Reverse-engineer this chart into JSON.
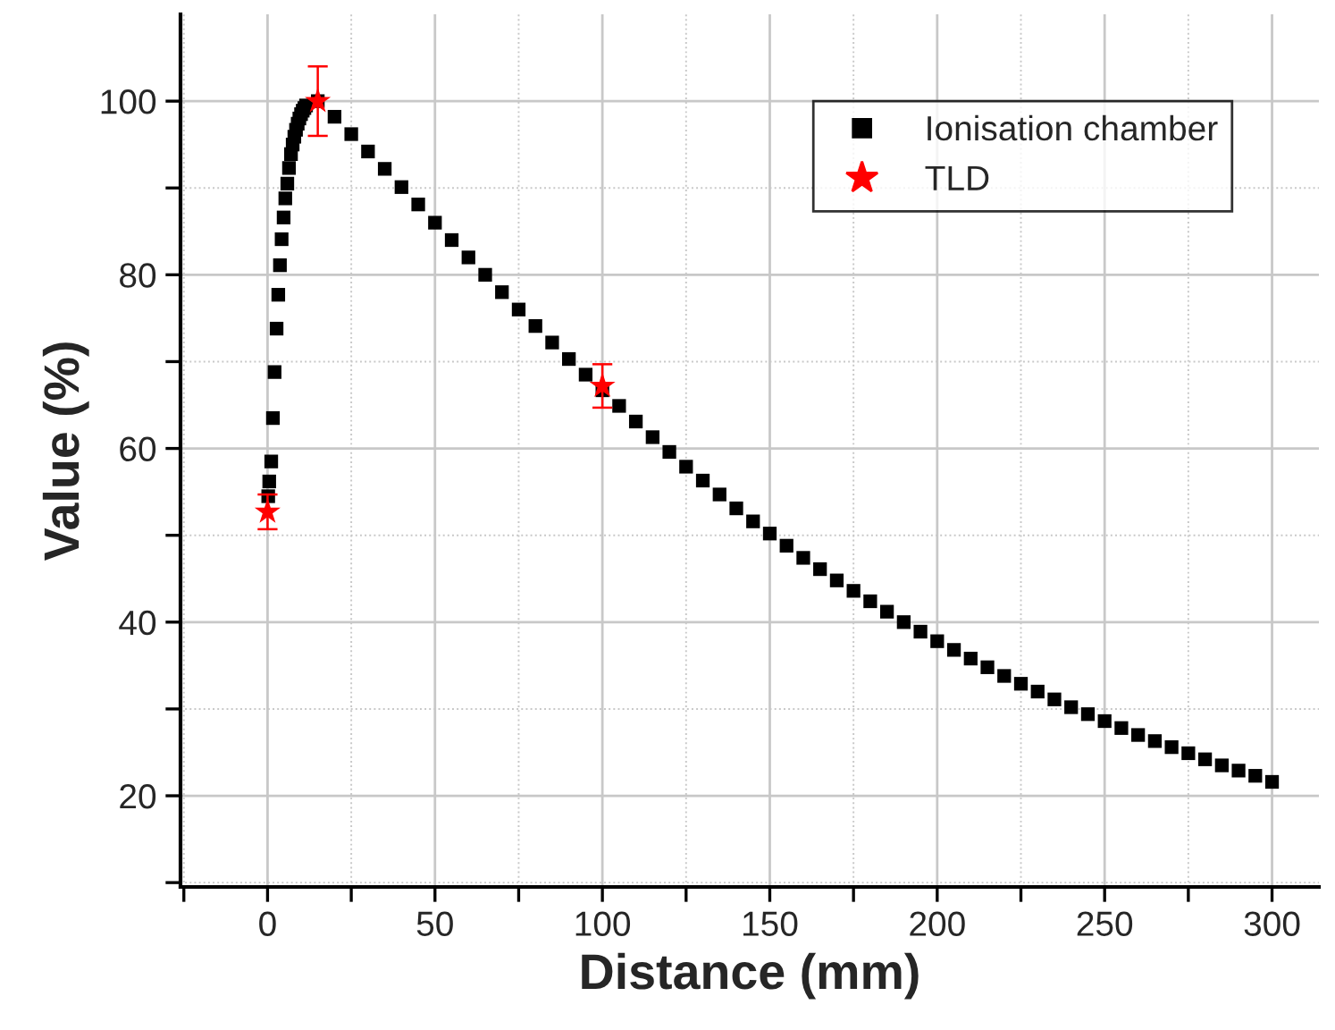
{
  "chart_data": {
    "type": "scatter",
    "xlabel": "Distance (mm)",
    "ylabel": "Value (%)",
    "xlim": [
      -26,
      314
    ],
    "ylim": [
      9.5,
      110
    ],
    "xticks": [
      {
        "value": -25,
        "label": null
      },
      0,
      {
        "value": 25,
        "label": null
      },
      50,
      {
        "value": 75,
        "label": null
      },
      100,
      {
        "value": 125,
        "label": null
      },
      150,
      {
        "value": 175,
        "label": null
      },
      200,
      {
        "value": 225,
        "label": null
      },
      250,
      {
        "value": 275,
        "label": null
      },
      300
    ],
    "yticks": [
      {
        "value": 10,
        "label": null
      },
      20,
      {
        "value": 30,
        "label": null
      },
      40,
      {
        "value": 50,
        "label": null
      },
      60,
      {
        "value": 70,
        "label": null
      },
      80,
      {
        "value": 90,
        "label": null
      },
      100
    ],
    "grid": true,
    "legend": "top right",
    "series": [
      {
        "name": "Ionisation chamber",
        "color": "#000000",
        "marker": "square",
        "x": [
          0.2,
          0.5,
          1.1,
          1.6,
          2.1,
          2.7,
          3.2,
          3.7,
          4.2,
          4.8,
          5.3,
          5.9,
          6.4,
          7.0,
          7.5,
          8,
          8.5,
          9,
          9.5,
          10,
          10.5,
          11,
          11.5,
          15,
          20,
          25,
          30,
          35,
          40,
          45,
          50,
          55,
          60,
          65,
          70,
          75,
          80,
          85,
          90,
          95,
          100,
          105,
          110,
          115,
          120,
          125,
          130,
          135,
          140,
          145,
          150,
          155,
          160,
          165,
          170,
          175,
          180,
          185,
          190,
          195,
          200,
          205,
          210,
          215,
          220,
          225,
          230,
          235,
          240,
          245,
          250,
          255,
          260,
          265,
          270,
          275,
          280,
          285,
          290,
          295,
          300
        ],
        "values": [
          54.5,
          56.2,
          58.5,
          63.5,
          68.8,
          73.8,
          77.7,
          81.1,
          84.1,
          86.6,
          88.8,
          90.5,
          92.3,
          93.9,
          95.0,
          95.9,
          96.7,
          97.4,
          98.0,
          98.5,
          98.9,
          99.2,
          99.5,
          100.0,
          98.2,
          96.2,
          94.2,
          92.2,
          90.1,
          88.1,
          86.0,
          84.0,
          82.0,
          80.0,
          78.0,
          76.0,
          74.1,
          72.2,
          70.3,
          68.5,
          66.7,
          64.9,
          63.1,
          61.3,
          59.6,
          57.9,
          56.3,
          54.7,
          53.1,
          51.6,
          50.2,
          48.8,
          47.4,
          46.1,
          44.8,
          43.6,
          42.4,
          41.2,
          40.0,
          38.9,
          37.8,
          36.8,
          35.8,
          34.8,
          33.8,
          32.9,
          32.0,
          31.1,
          30.2,
          29.4,
          28.6,
          27.8,
          27.0,
          26.3,
          25.6,
          24.9,
          24.2,
          23.5,
          22.9,
          22.3,
          21.6
        ]
      },
      {
        "name": "TLD",
        "color": "#ff0000",
        "marker": "star",
        "x": [
          0,
          15,
          100
        ],
        "values": [
          52.7,
          100.0,
          67.2
        ],
        "errors": [
          2,
          4,
          2.5
        ]
      }
    ]
  }
}
